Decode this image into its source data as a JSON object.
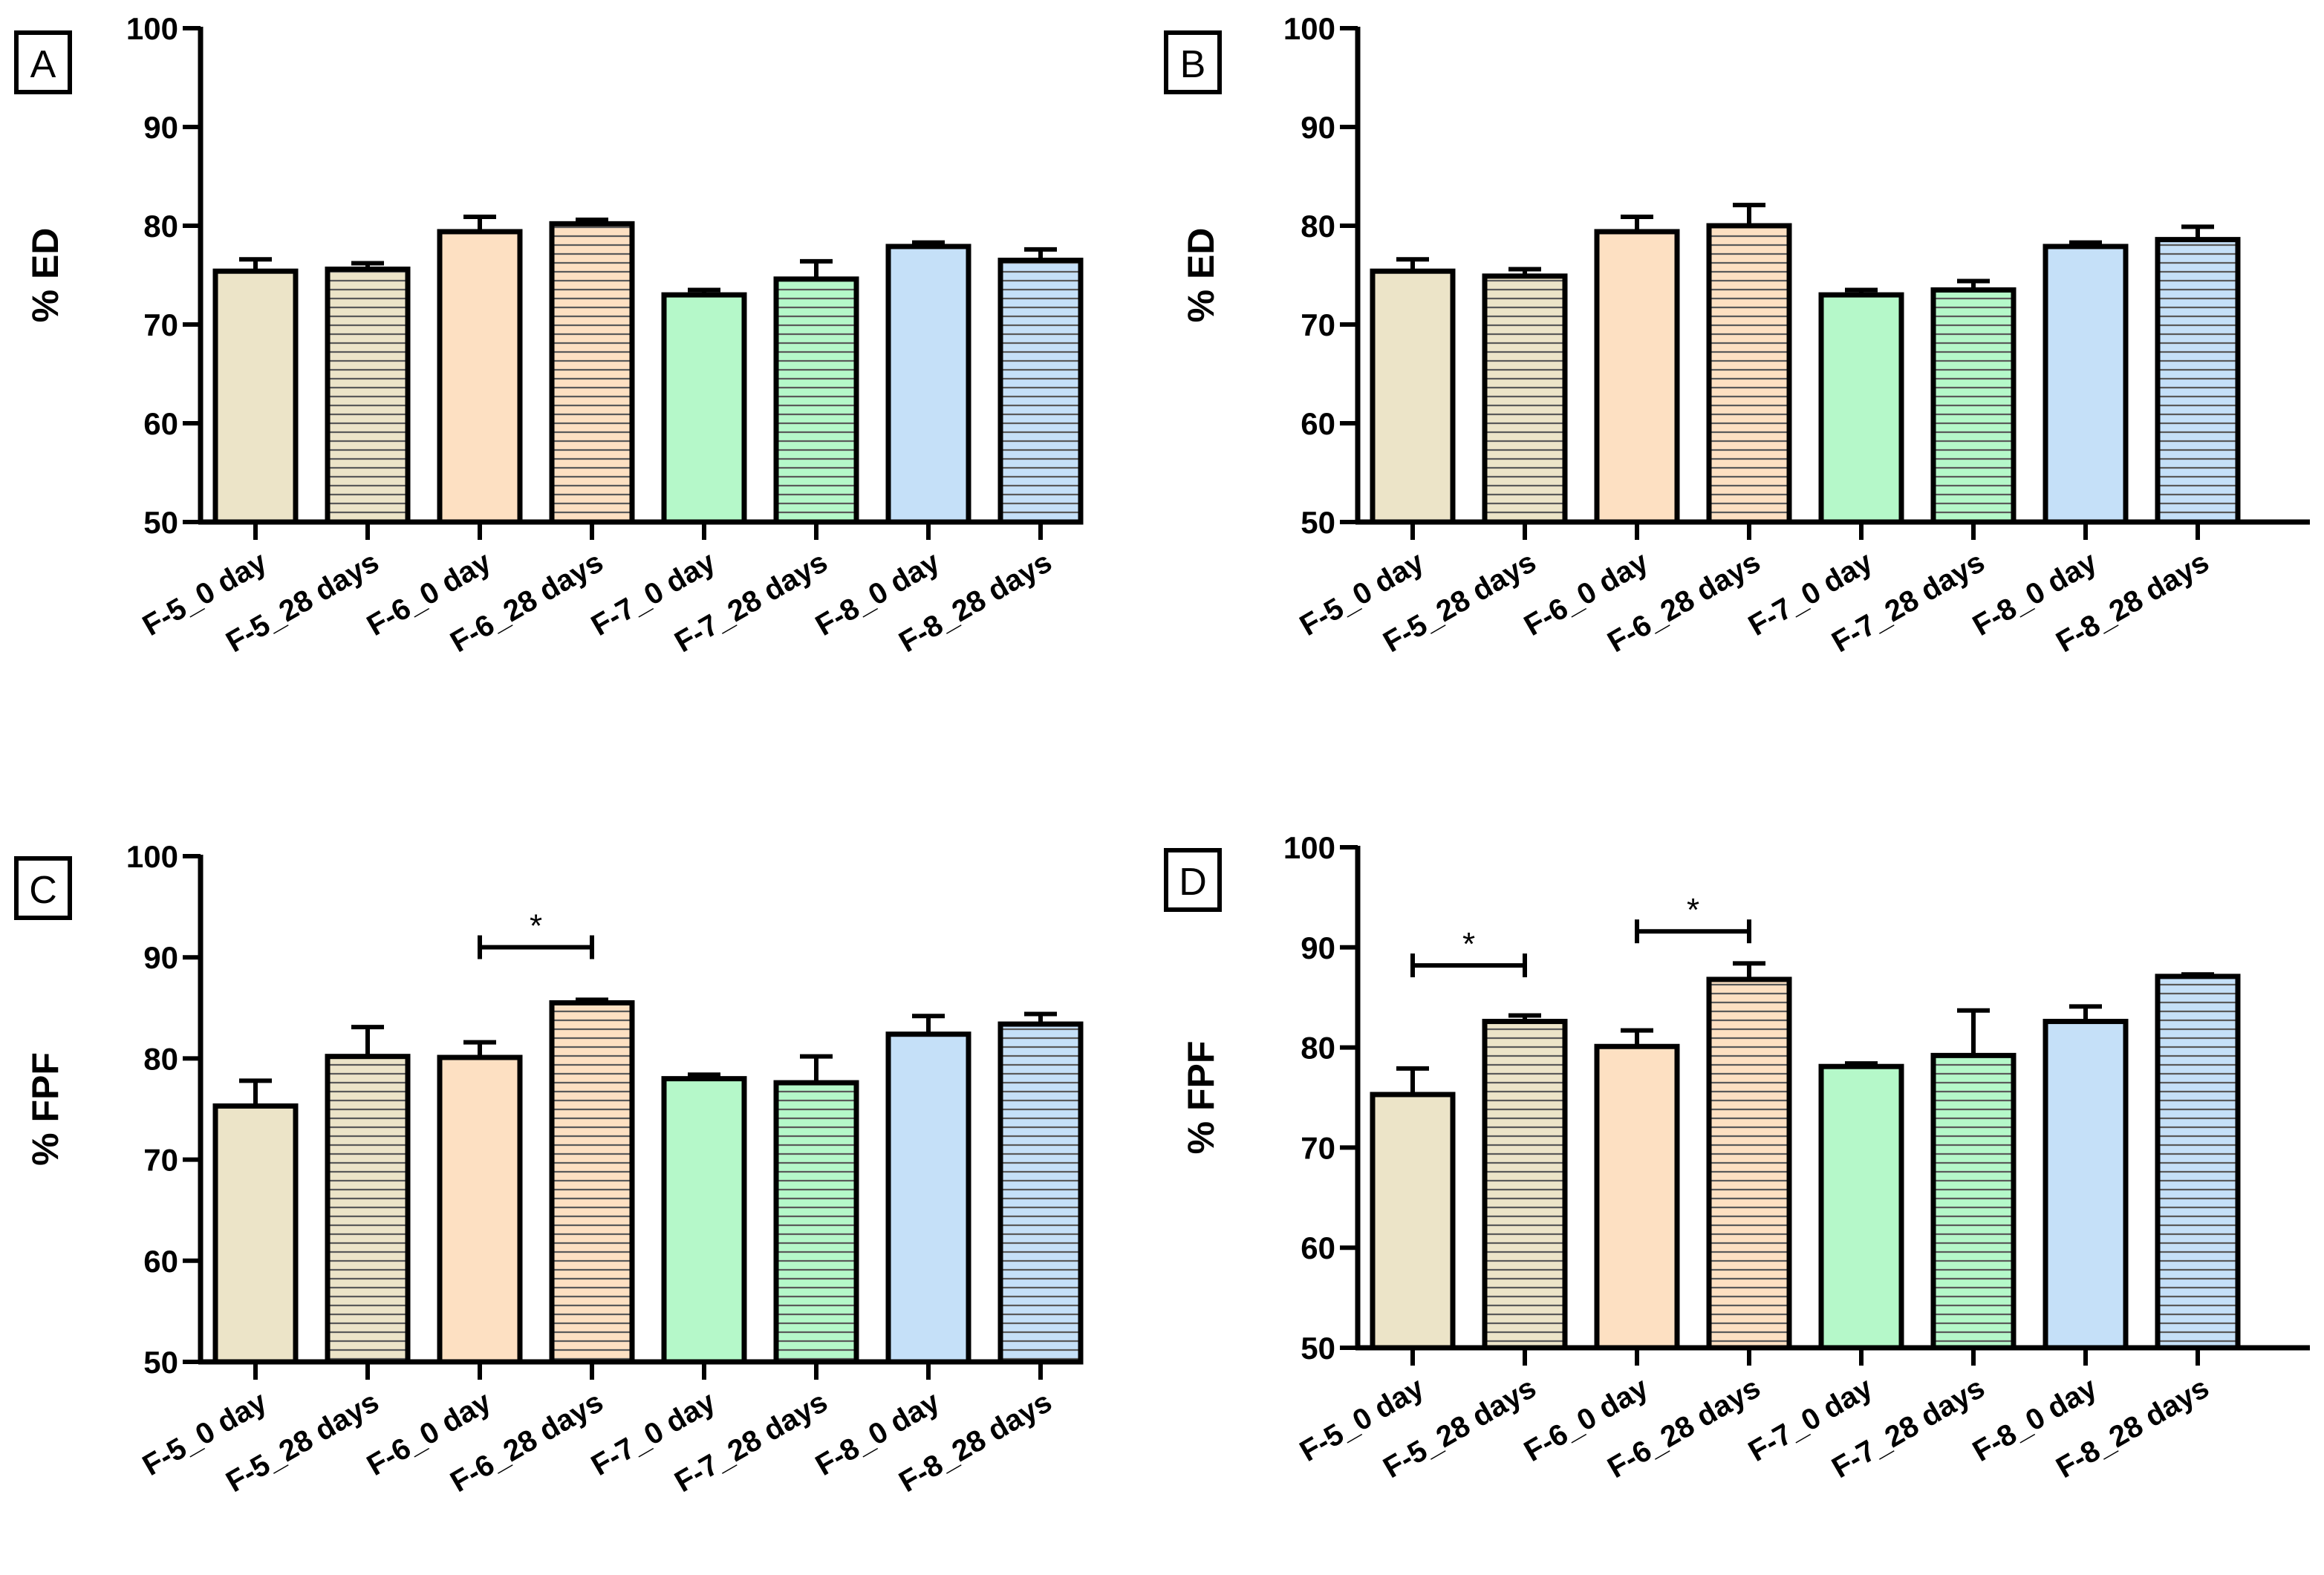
{
  "colors": {
    "F-5": "#ece4c8",
    "F-6": "#fde0c2",
    "F-7": "#b5f8c9",
    "F-8": "#c5e0f8",
    "stroke": "#000000",
    "hatch": "#5a5a5a"
  },
  "chart_data": [
    {
      "type": "bar",
      "panel_label": "A",
      "ylabel": "% ED",
      "ylim": [
        50,
        100
      ],
      "yticks": [
        50,
        60,
        70,
        80,
        90,
        100
      ],
      "categories": [
        "F-5_0 day",
        "F-5_28 days",
        "F-6_0 day",
        "F-6_28 days",
        "F-7_0 day",
        "F-7_28 days",
        "F-8_0 day",
        "F-8_28 days"
      ],
      "values": [
        75.4,
        75.6,
        79.4,
        80.2,
        73.0,
        74.6,
        77.9,
        76.5
      ],
      "errors": [
        1.2,
        0.6,
        1.5,
        0.4,
        0.5,
        1.8,
        0.4,
        1.1
      ],
      "hatched": [
        false,
        true,
        false,
        true,
        false,
        true,
        false,
        true
      ],
      "series_colors": [
        "F-5",
        "F-5",
        "F-6",
        "F-6",
        "F-7",
        "F-7",
        "F-8",
        "F-8"
      ],
      "significance": []
    },
    {
      "type": "bar",
      "panel_label": "B",
      "ylabel": "% ED",
      "ylim": [
        50,
        100
      ],
      "yticks": [
        50,
        60,
        70,
        80,
        90,
        100
      ],
      "categories": [
        "F-5_0 day",
        "F-5_28 days",
        "F-6_0 day",
        "F-6_28 days",
        "F-7_0 day",
        "F-7_28 days",
        "F-8_0 day",
        "F-8_28 days"
      ],
      "values": [
        75.4,
        74.9,
        79.4,
        80.0,
        73.0,
        73.5,
        77.9,
        78.6
      ],
      "errors": [
        1.2,
        0.7,
        1.5,
        2.1,
        0.5,
        0.9,
        0.4,
        1.3
      ],
      "hatched": [
        false,
        true,
        false,
        true,
        false,
        true,
        false,
        true
      ],
      "series_colors": [
        "F-5",
        "F-5",
        "F-6",
        "F-6",
        "F-7",
        "F-7",
        "F-8",
        "F-8"
      ],
      "significance": []
    },
    {
      "type": "bar",
      "panel_label": "C",
      "ylabel": "% FPF",
      "ylim": [
        50,
        100
      ],
      "yticks": [
        50,
        60,
        70,
        80,
        90,
        100
      ],
      "categories": [
        "F-5_0 day",
        "F-5_28 days",
        "F-6_0 day",
        "F-6_28 days",
        "F-7_0 day",
        "F-7_28 days",
        "F-8_0 day",
        "F-8_28 days"
      ],
      "values": [
        75.3,
        80.2,
        80.1,
        85.5,
        78.0,
        77.6,
        82.4,
        83.4
      ],
      "errors": [
        2.5,
        2.9,
        1.5,
        0.3,
        0.4,
        2.6,
        1.8,
        1.0
      ],
      "hatched": [
        false,
        true,
        false,
        true,
        false,
        true,
        false,
        true
      ],
      "series_colors": [
        "F-5",
        "F-5",
        "F-6",
        "F-6",
        "F-7",
        "F-7",
        "F-8",
        "F-8"
      ],
      "significance": [
        {
          "from": 2,
          "to": 3,
          "y": 91.0,
          "label": "*"
        }
      ]
    },
    {
      "type": "bar",
      "panel_label": "D",
      "ylabel": "% FPF",
      "ylim": [
        50,
        100
      ],
      "yticks": [
        50,
        60,
        70,
        80,
        90,
        100
      ],
      "categories": [
        "F-5_0 day",
        "F-5_28 days",
        "F-6_0 day",
        "F-6_28 days",
        "F-7_0 day",
        "F-7_28 days",
        "F-8_0 day",
        "F-8_28 days"
      ],
      "values": [
        75.3,
        82.6,
        80.1,
        86.8,
        78.1,
        79.2,
        82.6,
        87.1
      ],
      "errors": [
        2.6,
        0.6,
        1.6,
        1.6,
        0.3,
        4.5,
        1.5,
        0.2
      ],
      "hatched": [
        false,
        true,
        false,
        true,
        false,
        true,
        false,
        true
      ],
      "series_colors": [
        "F-5",
        "F-5",
        "F-6",
        "F-6",
        "F-7",
        "F-7",
        "F-8",
        "F-8"
      ],
      "significance": [
        {
          "from": 0,
          "to": 1,
          "y": 88.2,
          "label": "*"
        },
        {
          "from": 2,
          "to": 3,
          "y": 91.6,
          "label": "*"
        }
      ]
    }
  ]
}
